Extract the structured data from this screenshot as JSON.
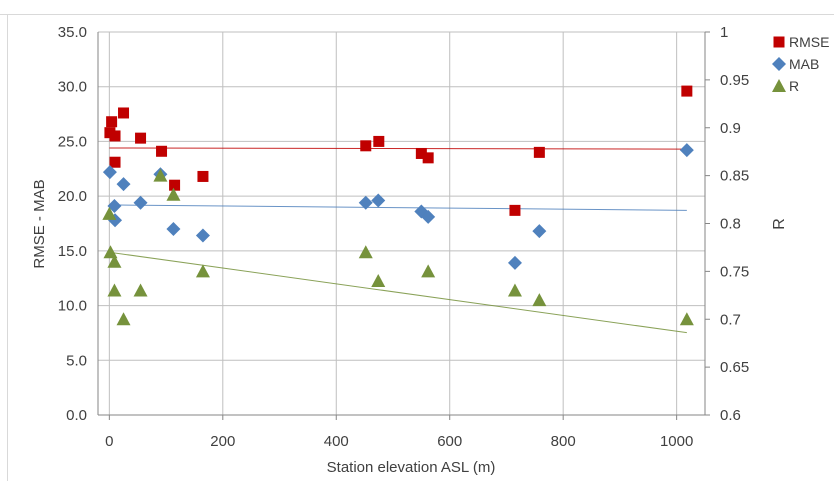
{
  "chart_data": {
    "type": "scatter",
    "xlabel": "Station elevation ASL (m)",
    "ylabel": "RMSE - MAB",
    "y2label": "R",
    "xlim": [
      -20,
      1050
    ],
    "ylim": [
      0,
      35
    ],
    "y2lim": [
      0.6,
      1.0
    ],
    "x_ticks": [
      0,
      200,
      400,
      600,
      800,
      1000
    ],
    "y_ticks": [
      "0.0",
      "5.0",
      "10.0",
      "15.0",
      "20.0",
      "25.0",
      "30.0",
      "35.0"
    ],
    "y2_ticks": [
      "0.6",
      "0.65",
      "0.7",
      "0.75",
      "0.8",
      "0.85",
      "0.9",
      "0.95",
      "1"
    ],
    "grid": true,
    "legend_position": "right",
    "series": [
      {
        "name": "RMSE",
        "marker": "square",
        "color": "#c00000",
        "axis": "left",
        "x": [
          1,
          4,
          10,
          10,
          25,
          55,
          92,
          115,
          165,
          452,
          475,
          550,
          562,
          715,
          758,
          1018
        ],
        "y": [
          25.8,
          26.8,
          25.5,
          23.1,
          27.6,
          25.3,
          24.1,
          21.0,
          21.8,
          24.6,
          25.0,
          23.9,
          23.5,
          18.7,
          24.0,
          29.6
        ],
        "trend": [
          24.4,
          24.3
        ]
      },
      {
        "name": "MAB",
        "marker": "diamond",
        "color": "#4f81bd",
        "axis": "left",
        "x": [
          1,
          9,
          10,
          25,
          55,
          90,
          113,
          165,
          452,
          474,
          550,
          562,
          715,
          758,
          1018
        ],
        "y": [
          22.2,
          19.1,
          17.8,
          21.1,
          19.4,
          22.0,
          17.0,
          16.4,
          19.4,
          19.6,
          18.6,
          18.1,
          13.9,
          16.8,
          24.2
        ],
        "trend": [
          19.2,
          18.7
        ]
      },
      {
        "name": "R",
        "marker": "triangle",
        "color": "#76923c",
        "axis": "right",
        "x": [
          0,
          2,
          9,
          9,
          25,
          55,
          90,
          113,
          165,
          452,
          474,
          562,
          715,
          758,
          1018
        ],
        "y": [
          0.81,
          0.77,
          0.76,
          0.73,
          0.7,
          0.73,
          0.85,
          0.83,
          0.75,
          0.77,
          0.74,
          0.75,
          0.73,
          0.72,
          0.7
        ],
        "trend": [
          0.77,
          0.686
        ]
      }
    ]
  }
}
